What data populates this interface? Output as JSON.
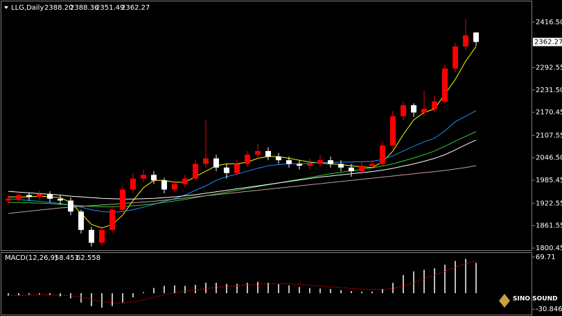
{
  "chart_data": [
    {
      "type": "candlestick",
      "symbol": "LLG,Daily",
      "header_ohlc": [
        {
          "value": 2388.2,
          "label": "2388.20"
        },
        {
          "value": 2388.36,
          "label": "2388.36"
        },
        {
          "value": 2351.49,
          "label": "2351.49"
        },
        {
          "value": 2362.27,
          "label": "2362.27"
        }
      ],
      "last_price": 2362.27,
      "up_color": "#ff0000",
      "down_color": "#ffffff",
      "open": [
        1930,
        1935,
        1945,
        1940,
        1948,
        1935,
        1930,
        1900,
        1850,
        1815,
        1850,
        1905,
        1960,
        1990,
        2000,
        1985,
        1960,
        1975,
        1990,
        2030,
        2045,
        2020,
        2005,
        2030,
        2055,
        2065,
        2050,
        2040,
        2030,
        2025,
        2030,
        2040,
        2030,
        2020,
        2010,
        2025,
        2030,
        2080,
        2160,
        2190,
        2170,
        2180,
        2200,
        2290,
        2350,
        2388.2
      ],
      "high": [
        1945,
        1955,
        1952,
        1958,
        1955,
        1945,
        1938,
        1905,
        1858,
        1860,
        1915,
        1970,
        2005,
        2015,
        2010,
        1992,
        1985,
        2000,
        2040,
        2150,
        2055,
        2030,
        2040,
        2065,
        2085,
        2075,
        2060,
        2050,
        2040,
        2045,
        2055,
        2050,
        2040,
        2030,
        2035,
        2040,
        2090,
        2175,
        2200,
        2195,
        2230,
        2215,
        2300,
        2360,
        2425,
        2388.36
      ],
      "low": [
        1920,
        1928,
        1930,
        1932,
        1925,
        1918,
        1890,
        1840,
        1805,
        1808,
        1842,
        1898,
        1950,
        1980,
        1975,
        1950,
        1952,
        1965,
        1985,
        2020,
        2010,
        1990,
        1998,
        2022,
        2045,
        2040,
        2030,
        2020,
        2015,
        2015,
        2022,
        2020,
        2010,
        1995,
        2000,
        2018,
        2025,
        2070,
        2150,
        2158,
        2160,
        2170,
        2195,
        2280,
        2340,
        2351.49
      ],
      "close": [
        1935,
        1945,
        1940,
        1948,
        1935,
        1930,
        1900,
        1850,
        1815,
        1850,
        1905,
        1960,
        1990,
        2000,
        1985,
        1960,
        1975,
        1990,
        2030,
        2045,
        2020,
        2005,
        2030,
        2055,
        2065,
        2050,
        2040,
        2030,
        2025,
        2030,
        2040,
        2030,
        2020,
        2010,
        2025,
        2030,
        2080,
        2160,
        2190,
        2170,
        2180,
        2200,
        2290,
        2350,
        2380,
        2362.27
      ],
      "series": [
        {
          "color": "#ffff00",
          "values": [
            1940,
            1940,
            1940,
            1942,
            1940,
            1938,
            1925,
            1895,
            1865,
            1855,
            1865,
            1890,
            1930,
            1965,
            1985,
            1985,
            1980,
            1980,
            1995,
            2010,
            2025,
            2030,
            2030,
            2035,
            2045,
            2050,
            2050,
            2045,
            2040,
            2035,
            2032,
            2030,
            2028,
            2025,
            2022,
            2020,
            2035,
            2065,
            2110,
            2150,
            2170,
            2180,
            2220,
            2260,
            2310,
            2350
          ]
        },
        {
          "color": "#1e90ff",
          "values": [
            1935,
            1933,
            1930,
            1928,
            1925,
            1922,
            1918,
            1912,
            1905,
            1900,
            1898,
            1900,
            1905,
            1912,
            1920,
            1928,
            1935,
            1945,
            1958,
            1970,
            1985,
            1995,
            2002,
            2010,
            2018,
            2025,
            2028,
            2030,
            2030,
            2032,
            2033,
            2034,
            2035,
            2035,
            2036,
            2037,
            2042,
            2052,
            2065,
            2078,
            2090,
            2100,
            2120,
            2145,
            2160,
            2175
          ]
        },
        {
          "color": "#32cd32",
          "values": [
            1925,
            1925,
            1924,
            1923,
            1922,
            1920,
            1918,
            1916,
            1914,
            1913,
            1913,
            1914,
            1916,
            1918,
            1921,
            1925,
            1929,
            1933,
            1938,
            1943,
            1948,
            1953,
            1958,
            1963,
            1968,
            1973,
            1978,
            1983,
            1988,
            1993,
            1998,
            2003,
            2007,
            2011,
            2015,
            2019,
            2024,
            2030,
            2038,
            2046,
            2055,
            2065,
            2078,
            2092,
            2105,
            2118
          ]
        },
        {
          "color": "#ffffff",
          "values": [
            1955,
            1953,
            1951,
            1949,
            1947,
            1945,
            1942,
            1940,
            1938,
            1936,
            1935,
            1934,
            1934,
            1935,
            1936,
            1938,
            1940,
            1943,
            1946,
            1950,
            1954,
            1958,
            1962,
            1966,
            1970,
            1974,
            1978,
            1982,
            1986,
            1990,
            1994,
            1997,
            2000,
            2003,
            2006,
            2009,
            2013,
            2018,
            2024,
            2030,
            2037,
            2045,
            2055,
            2068,
            2082,
            2095
          ]
        },
        {
          "color": "#c8a0a0",
          "values": [
            1895,
            1898,
            1901,
            1904,
            1907,
            1910,
            1912,
            1914,
            1916,
            1918,
            1920,
            1922,
            1924,
            1926,
            1928,
            1931,
            1934,
            1937,
            1940,
            1943,
            1946,
            1949,
            1952,
            1955,
            1958,
            1961,
            1964,
            1967,
            1970,
            1973,
            1976,
            1979,
            1982,
            1985,
            1988,
            1991,
            1994,
            1997,
            2000,
            2003,
            2006,
            2009,
            2012,
            2016,
            2020,
            2025
          ]
        }
      ],
      "ylim": [
        1792.9,
        2472.9
      ],
      "yticks": [
        {
          "value": 2416.5,
          "label": "2416.50"
        },
        2292.55,
        {
          "value": 2231.5,
          "label": "2231.50"
        },
        2170.45,
        2107.55,
        {
          "value": 2046.5,
          "label": "2046.50"
        },
        1985.45,
        1922.55,
        1861.55,
        1800.45
      ]
    },
    {
      "type": "macd",
      "title": "MACD(12,26,9)",
      "main": 58.451,
      "signal": 62.558,
      "series": [
        {
          "name": "MACD",
          "color": "#c0c0c0",
          "values": [
            -5,
            -4,
            -3,
            -3,
            -4,
            -6,
            -10,
            -18,
            -25,
            -28,
            -25,
            -18,
            -8,
            2,
            10,
            14,
            15,
            14,
            16,
            20,
            20,
            18,
            18,
            20,
            22,
            20,
            18,
            15,
            12,
            10,
            9,
            8,
            6,
            4,
            3,
            3,
            8,
            20,
            35,
            42,
            45,
            48,
            55,
            62,
            66,
            58.451
          ]
        },
        {
          "name": "Signal",
          "color": "#ff0000",
          "values": [
            -4,
            -4,
            -4,
            -3,
            -3,
            -4,
            -5,
            -8,
            -12,
            -16,
            -19,
            -19,
            -17,
            -13,
            -8,
            -3,
            1,
            4,
            6,
            9,
            11,
            13,
            14,
            16,
            17,
            18,
            18,
            18,
            17,
            15,
            14,
            12,
            11,
            9,
            8,
            7,
            7,
            9,
            14,
            20,
            28,
            35,
            42,
            50,
            57,
            62.558
          ]
        }
      ],
      "ylim": [
        -42.6,
        77.5
      ],
      "yticks": [
        69.71,
        -30.846
      ]
    }
  ],
  "watermark": "SINO SOUND"
}
